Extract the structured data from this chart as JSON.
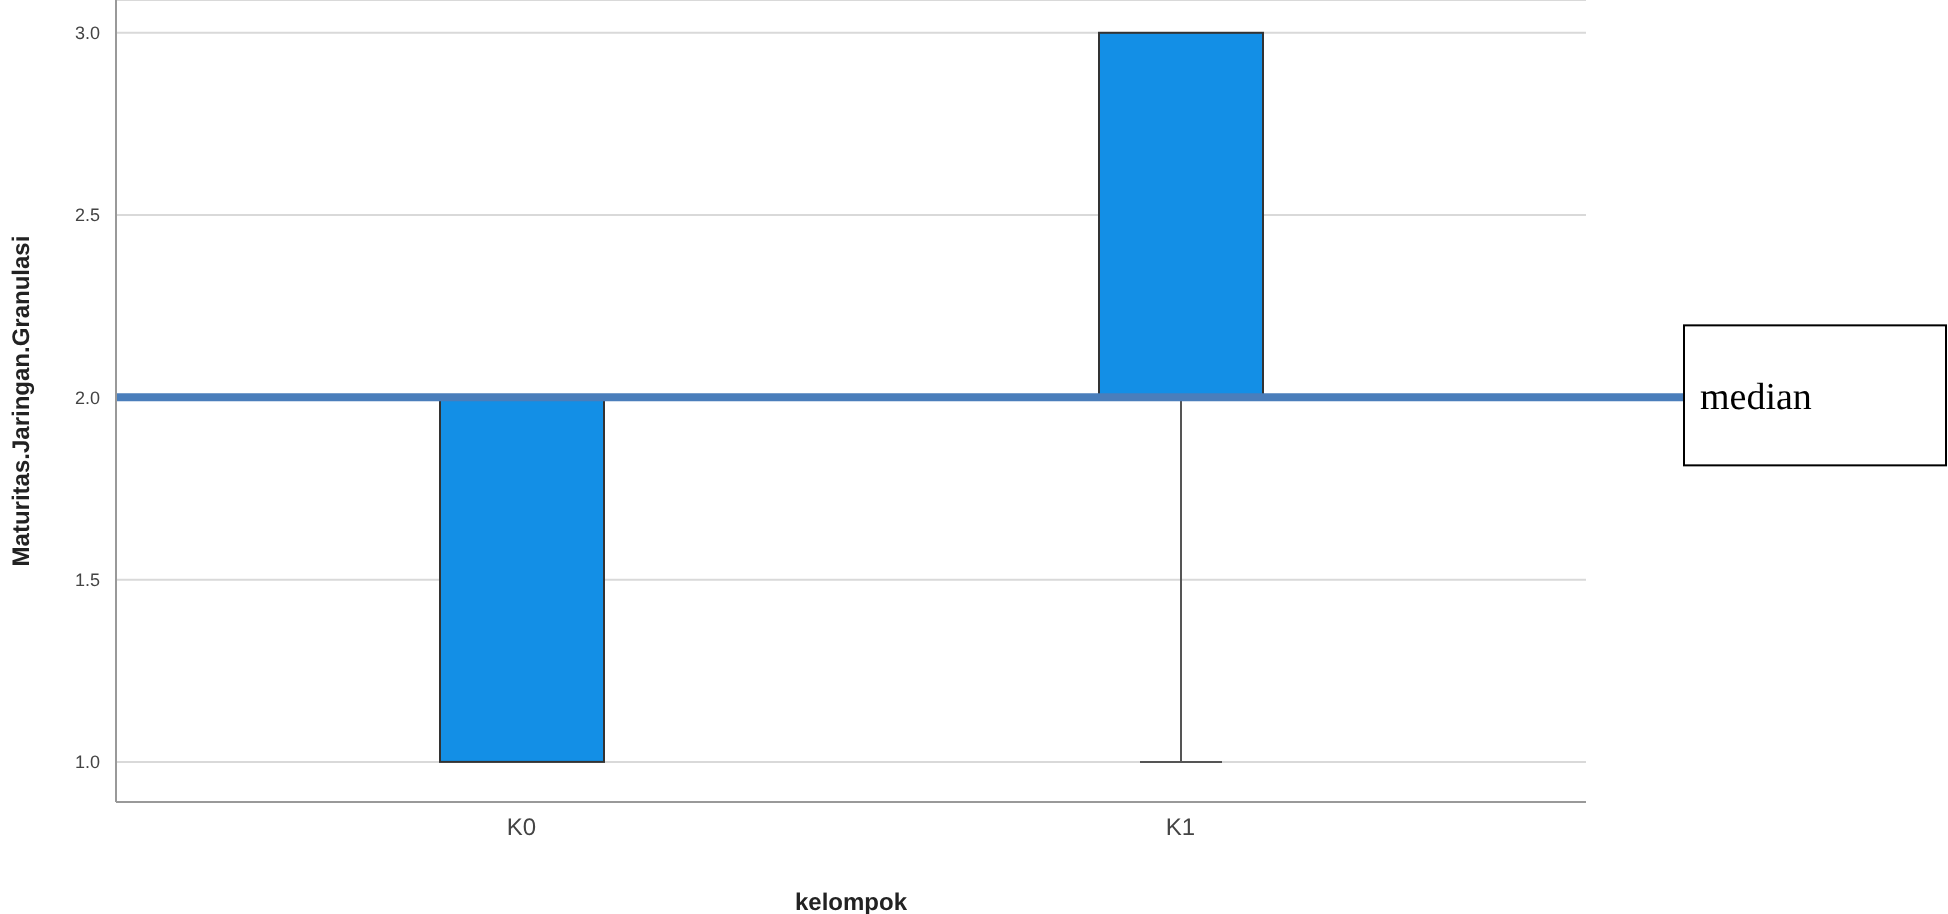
{
  "chart_data": {
    "type": "box",
    "xlabel": "kelompok",
    "ylabel": "Maturitas.Jaringan.Granulasi",
    "categories": [
      "K0",
      "K1"
    ],
    "series": [
      {
        "color": "#138fe6",
        "boxes": [
          {
            "low": 1,
            "q1": 1,
            "median": 2,
            "q3": 2,
            "high": 2
          },
          {
            "low": 1,
            "q1": 2,
            "median": 2,
            "q3": 3,
            "high": 3
          }
        ]
      }
    ],
    "ylim": [
      0.89,
      3.09
    ],
    "yticks": [
      {
        "value": 1,
        "label": "1.0"
      },
      {
        "value": 1.5,
        "label": "1.5"
      },
      {
        "value": 2,
        "label": "2.0"
      },
      {
        "value": 2.5,
        "label": "2.5"
      },
      {
        "value": 3,
        "label": "3.0"
      }
    ],
    "grid": "y",
    "ref_lines": [
      {
        "axis": "y",
        "value": 2,
        "label": "median",
        "color": "#4a7ebb"
      }
    ]
  }
}
